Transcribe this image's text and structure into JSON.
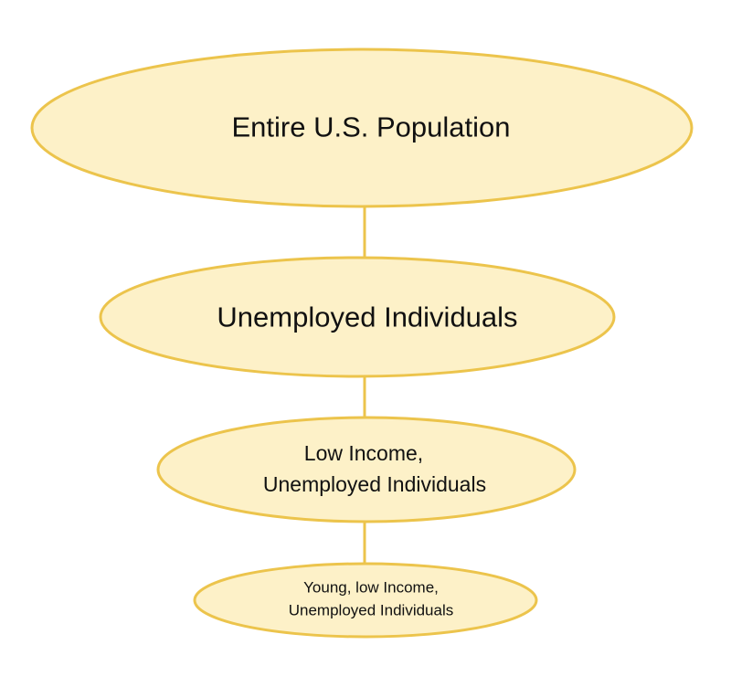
{
  "diagram": {
    "colors": {
      "node_fill": "#fdf1c8",
      "node_stroke": "#ecc44c",
      "connector": "#ecc44c",
      "text": "#111111"
    },
    "nodes": [
      {
        "id": "node-entire-us-population",
        "lines": [
          "Entire U.S. Population"
        ]
      },
      {
        "id": "node-unemployed-individuals",
        "lines": [
          "Unemployed Individuals"
        ]
      },
      {
        "id": "node-low-income-unemployed",
        "lines": [
          "Low Income,",
          "Unemployed Individuals"
        ]
      },
      {
        "id": "node-young-low-income-unemployed",
        "lines": [
          "Young, low Income,",
          "Unemployed Individuals"
        ]
      }
    ]
  }
}
